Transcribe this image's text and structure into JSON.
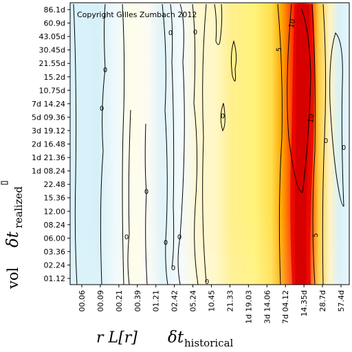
{
  "chart_data": {
    "type": "heatmap",
    "copyright": "Copyright Gilles Zumbach 2012",
    "y_axis": {
      "label_main": "vol",
      "label_symbol": "δt",
      "label_sub": "realized",
      "ticks": [
        "86.1d",
        "60.9d",
        "43.05d",
        "30.45d",
        "21.55d",
        "15.2d",
        "10.75d",
        "7d 14.24",
        "5d 09.36",
        "3d 19.12",
        "2d 16.48",
        "1d 21.36",
        "1d 08.24",
        "22.48",
        "15.36",
        "12.00",
        "08.24",
        "06.00",
        "03.36",
        "02.24",
        "01.12"
      ]
    },
    "x_axis": {
      "label_left": "r L[r]",
      "label_symbol": "δt",
      "label_sub": "historical",
      "ticks": [
        "00.06",
        "00.09",
        "00.21",
        "00.39",
        "01.21",
        "02.42",
        "05.24",
        "10.45",
        "21.33",
        "1d 19.03",
        "3d 14.06",
        "7d 04.12",
        "14.35d",
        "28.7d",
        "57.4d"
      ]
    },
    "contour_labels": [
      "10",
      "5",
      "10",
      "5",
      "0",
      "0",
      "0",
      "0",
      "0",
      "0",
      "0",
      "0",
      "0",
      "0",
      "0",
      "0",
      "0"
    ],
    "color_scale": [
      "#d8f2fa",
      "#ffffff",
      "#fff3b0",
      "#ffe24a",
      "#ff8c00",
      "#e00000"
    ],
    "peak": {
      "x_tick": "14.35d",
      "y_range": [
        "86.1d",
        "03.36"
      ],
      "level": "10"
    }
  }
}
